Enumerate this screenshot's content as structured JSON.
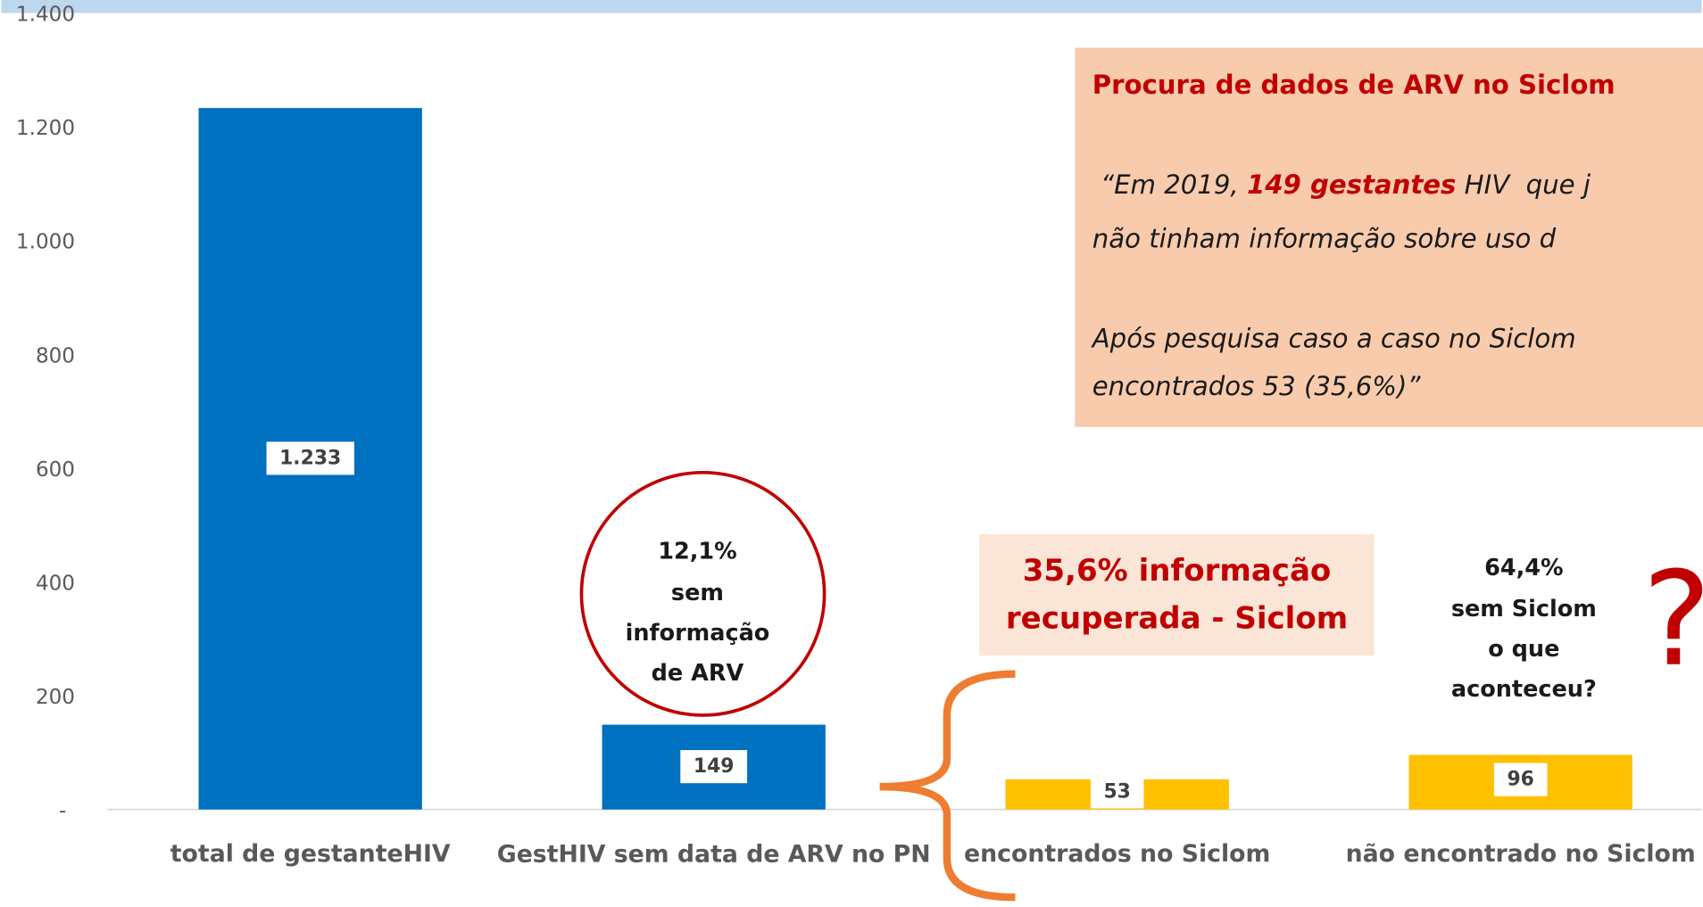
{
  "chart_data": {
    "type": "bar",
    "categories": [
      "total de gestanteHIV",
      "GestHIV sem data de ARV no PN",
      "encontrados no Siclom",
      "não encontrado no Siclom"
    ],
    "values": [
      1233,
      149,
      53,
      96
    ],
    "value_labels": [
      "1.233",
      "149",
      "53",
      "96"
    ],
    "colors": [
      "#0070c0",
      "#0070c0",
      "#ffc000",
      "#ffc000"
    ],
    "ylim": [
      0,
      1400
    ],
    "yticks": [
      {
        "value": 0,
        "label": "-"
      },
      200,
      400,
      600,
      800,
      {
        "value": 1000,
        "label": "1.000"
      },
      {
        "value": 1200,
        "label": "1.200"
      },
      {
        "value": 1400,
        "label": "1.400"
      }
    ],
    "annotations": {
      "box_title": "Procura de dados de ARV no Siclom",
      "quote_line1_a": " “Em 2019, ",
      "quote_line1_b": "149 gestantes",
      "quote_line1_c": " HIV  que j",
      "quote_line2": "não tinham informação sobre uso d",
      "quote_line3": "Após pesquisa caso a caso no Siclom",
      "quote_line4": "encontrados 53 (35,6%)”",
      "circle": [
        "12,1%",
        "sem",
        "informação",
        "de ARV"
      ],
      "recovered": [
        "35,6% informação",
        "recuperada - Siclom"
      ],
      "missing": [
        "64,4%",
        "sem Siclom",
        "o que",
        "aconteceu?"
      ],
      "question": "?"
    }
  }
}
